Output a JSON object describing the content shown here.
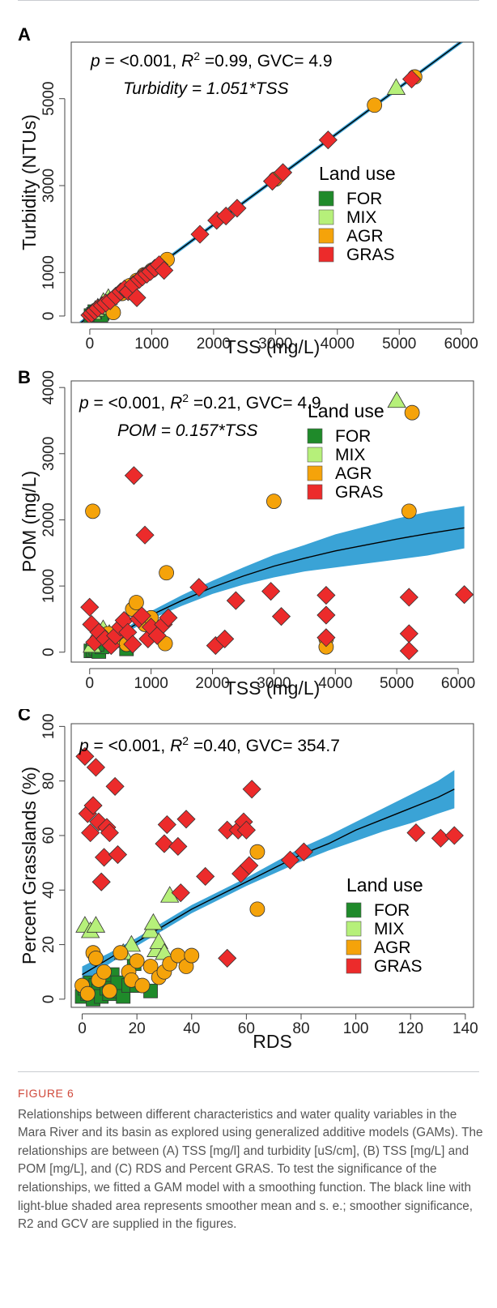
{
  "figure": {
    "caption_title": "FIGURE 6",
    "caption_text": "Relationships between different characteristics and water quality variables in the Mara River and its basin as explored using generalized additive models (GAMs). The relationships are between (A) TSS [mg/l] and turbidity [uS/cm], (B) TSS [mg/L] and POM [mg/L], and (C) RDS and Percent GRAS. To test the significance of the relationships, we fitted a GAM model with a smoothing function. The black line with light-blue shaded area represents smoother mean and s. e.; smoother significance, R2 and GCV are supplied in the figures."
  },
  "colors": {
    "FOR": "#1f8a2a",
    "MIX": "#b6f07a",
    "AGR": "#f5a30a",
    "GRAS": "#ec2b2b",
    "band": "#3aa3d6",
    "smoother": "#000000"
  },
  "legend": {
    "title": "Land use",
    "entries": [
      "FOR",
      "MIX",
      "AGR",
      "GRAS"
    ]
  },
  "chart_data": [
    {
      "id": "A",
      "type": "scatter",
      "panel_letter": "A",
      "stat_p": "p",
      "stat_text": " = <0.001, R",
      "stat_sup": "2",
      "stat_rest": " =0.99, GVC= 4.9",
      "equation": "Turbidity = 1.051*TSS",
      "xlabel": "TSS (mg/L)",
      "ylabel": "Turbidity (NTUs)",
      "xlim": [
        -300,
        6200
      ],
      "ylim": [
        -150,
        6300
      ],
      "xticks": [
        0,
        1000,
        2000,
        3000,
        4000,
        5000,
        6000
      ],
      "yticks": [
        0,
        1000,
        3000,
        5000
      ],
      "fit": {
        "kind": "line",
        "slope": 1.051,
        "x": [
          -150,
          6200
        ]
      },
      "series": [
        {
          "name": "FOR",
          "shape": "square",
          "points": [
            [
              20,
              10
            ],
            [
              60,
              40
            ],
            [
              100,
              60
            ],
            [
              150,
              80
            ],
            [
              200,
              60
            ],
            [
              250,
              120
            ],
            [
              120,
              30
            ],
            [
              180,
              20
            ],
            [
              80,
              100
            ]
          ]
        },
        {
          "name": "MIX",
          "shape": "triangle",
          "points": [
            [
              40,
              80
            ],
            [
              90,
              150
            ],
            [
              130,
              200
            ],
            [
              220,
              330
            ],
            [
              300,
              420
            ],
            [
              4950,
              5250
            ]
          ]
        },
        {
          "name": "AGR",
          "shape": "circle",
          "points": [
            [
              380,
              80
            ],
            [
              520,
              520
            ],
            [
              650,
              700
            ],
            [
              760,
              820
            ],
            [
              880,
              950
            ],
            [
              1000,
              1050
            ],
            [
              1250,
              1300
            ],
            [
              3000,
              3150
            ],
            [
              4600,
              4850
            ],
            [
              5250,
              5500
            ]
          ]
        },
        {
          "name": "GRAS",
          "shape": "diamond",
          "points": [
            [
              0,
              20
            ],
            [
              30,
              60
            ],
            [
              80,
              120
            ],
            [
              130,
              180
            ],
            [
              200,
              240
            ],
            [
              260,
              300
            ],
            [
              330,
              350
            ],
            [
              420,
              460
            ],
            [
              500,
              560
            ],
            [
              560,
              620
            ],
            [
              620,
              560
            ],
            [
              700,
              720
            ],
            [
              760,
              420
            ],
            [
              800,
              840
            ],
            [
              850,
              900
            ],
            [
              920,
              960
            ],
            [
              980,
              1020
            ],
            [
              1050,
              1100
            ],
            [
              1120,
              1180
            ],
            [
              1200,
              1050
            ],
            [
              1780,
              1880
            ],
            [
              2050,
              2200
            ],
            [
              2200,
              2300
            ],
            [
              2380,
              2480
            ],
            [
              2950,
              3100
            ],
            [
              3120,
              3300
            ],
            [
              3850,
              4050
            ],
            [
              5200,
              5450
            ]
          ]
        }
      ]
    },
    {
      "id": "B",
      "type": "scatter",
      "panel_letter": "B",
      "stat_p": "p",
      "stat_text": " = <0.001, R",
      "stat_sup": "2",
      "stat_rest": " =0.21, GVC= 4.9",
      "equation": "POM = 0.157*TSS",
      "xlabel": "TSS (mg/L)",
      "ylabel": "POM (mg/L)",
      "xlim": [
        -300,
        6250
      ],
      "ylim": [
        -150,
        4100
      ],
      "xticks": [
        0,
        1000,
        2000,
        3000,
        4000,
        5000,
        6000
      ],
      "yticks": [
        0,
        1000,
        2000,
        3000,
        4000
      ],
      "fit": {
        "kind": "curve",
        "x": [
          0,
          500,
          1000,
          1500,
          2000,
          2500,
          3000,
          3500,
          4000,
          4500,
          5000,
          5500,
          6100
        ],
        "y": [
          0,
          280,
          560,
          780,
          980,
          1150,
          1300,
          1420,
          1530,
          1620,
          1710,
          1790,
          1880
        ],
        "lo": [
          0,
          250,
          500,
          700,
          880,
          1020,
          1130,
          1220,
          1280,
          1340,
          1400,
          1460,
          1570
        ],
        "hi": [
          0,
          310,
          620,
          860,
          1080,
          1280,
          1470,
          1620,
          1780,
          1900,
          2020,
          2120,
          2210
        ]
      },
      "series": [
        {
          "name": "FOR",
          "shape": "square",
          "points": [
            [
              20,
              20
            ],
            [
              60,
              30
            ],
            [
              100,
              60
            ],
            [
              150,
              10
            ],
            [
              200,
              80
            ],
            [
              600,
              50
            ],
            [
              120,
              120
            ]
          ]
        },
        {
          "name": "MIX",
          "shape": "triangle",
          "points": [
            [
              40,
              100
            ],
            [
              90,
              200
            ],
            [
              140,
              300
            ],
            [
              220,
              350
            ],
            [
              320,
              280
            ],
            [
              5000,
              3800
            ]
          ]
        },
        {
          "name": "AGR",
          "shape": "circle",
          "points": [
            [
              50,
              2130
            ],
            [
              300,
              280
            ],
            [
              450,
              180
            ],
            [
              600,
              120
            ],
            [
              700,
              650
            ],
            [
              760,
              750
            ],
            [
              900,
              420
            ],
            [
              1000,
              520
            ],
            [
              1250,
              1200
            ],
            [
              1230,
              130
            ],
            [
              3000,
              2280
            ],
            [
              3850,
              200
            ],
            [
              3850,
              80
            ],
            [
              5200,
              2130
            ],
            [
              5250,
              3620
            ]
          ]
        },
        {
          "name": "GRAS",
          "shape": "diamond",
          "points": [
            [
              0,
              680
            ],
            [
              30,
              420
            ],
            [
              80,
              150
            ],
            [
              150,
              300
            ],
            [
              250,
              200
            ],
            [
              350,
              100
            ],
            [
              420,
              250
            ],
            [
              500,
              380
            ],
            [
              560,
              480
            ],
            [
              620,
              300
            ],
            [
              700,
              120
            ],
            [
              720,
              2670
            ],
            [
              800,
              500
            ],
            [
              850,
              550
            ],
            [
              900,
              1770
            ],
            [
              950,
              200
            ],
            [
              1000,
              380
            ],
            [
              1100,
              250
            ],
            [
              1200,
              420
            ],
            [
              1280,
              520
            ],
            [
              1780,
              980
            ],
            [
              2050,
              100
            ],
            [
              2200,
              200
            ],
            [
              2380,
              780
            ],
            [
              2950,
              920
            ],
            [
              3120,
              540
            ],
            [
              3850,
              860
            ],
            [
              3850,
              560
            ],
            [
              3850,
              220
            ],
            [
              5200,
              830
            ],
            [
              5200,
              280
            ],
            [
              5200,
              20
            ],
            [
              6100,
              870
            ]
          ]
        }
      ]
    },
    {
      "id": "C",
      "type": "scatter",
      "panel_letter": "C",
      "stat_p": "p",
      "stat_text": " = <0.001, R",
      "stat_sup": "2",
      "stat_rest": " =0.40, GVC= 354.7",
      "equation": "",
      "xlabel": "RDS",
      "ylabel": "Percent Grasslands (%)",
      "xlim": [
        -4,
        143
      ],
      "ylim": [
        -3,
        101
      ],
      "xticks": [
        0,
        20,
        40,
        60,
        80,
        100,
        120,
        140
      ],
      "yticks": [
        0,
        20,
        40,
        60,
        80,
        100
      ],
      "fit": {
        "kind": "curve",
        "x": [
          0,
          10,
          20,
          30,
          40,
          50,
          60,
          70,
          80,
          90,
          100,
          110,
          120,
          130,
          136
        ],
        "y": [
          9,
          15,
          21,
          27,
          33,
          38,
          43,
          48,
          53,
          57,
          62,
          66,
          70,
          74,
          77
        ],
        "lo": [
          6,
          13,
          19.5,
          25.5,
          31.5,
          36.5,
          41.5,
          46,
          50.5,
          54.5,
          58,
          61.5,
          64.5,
          68,
          70
        ],
        "hi": [
          12,
          17,
          22.5,
          28.5,
          34.5,
          39.5,
          44.5,
          50,
          55.5,
          60,
          65,
          70,
          75,
          80,
          84
        ]
      },
      "series": [
        {
          "name": "FOR",
          "shape": "square",
          "points": [
            [
              0,
              1
            ],
            [
              1,
              4
            ],
            [
              2,
              2
            ],
            [
              3,
              6
            ],
            [
              4,
              0
            ],
            [
              5,
              5
            ],
            [
              6,
              3
            ],
            [
              7,
              1
            ],
            [
              8,
              7
            ],
            [
              9,
              4
            ],
            [
              10,
              2
            ],
            [
              11,
              9
            ],
            [
              12,
              3
            ],
            [
              13,
              6
            ],
            [
              15,
              1
            ],
            [
              17,
              5
            ],
            [
              19,
              13
            ],
            [
              20,
              5
            ],
            [
              25,
              3
            ]
          ]
        },
        {
          "name": "MIX",
          "shape": "triangle",
          "points": [
            [
              1,
              27
            ],
            [
              3,
              25
            ],
            [
              5,
              27
            ],
            [
              15,
              17
            ],
            [
              18,
              20
            ],
            [
              25,
              25
            ],
            [
              26,
              28
            ],
            [
              27,
              18
            ],
            [
              28,
              21
            ],
            [
              30,
              17
            ],
            [
              32,
              38
            ]
          ]
        },
        {
          "name": "AGR",
          "shape": "circle",
          "points": [
            [
              0,
              5
            ],
            [
              2,
              2
            ],
            [
              4,
              17
            ],
            [
              5,
              15
            ],
            [
              6,
              7
            ],
            [
              8,
              10
            ],
            [
              10,
              3
            ],
            [
              14,
              17
            ],
            [
              17,
              10
            ],
            [
              18,
              7
            ],
            [
              20,
              14
            ],
            [
              22,
              5
            ],
            [
              25,
              12
            ],
            [
              28,
              8
            ],
            [
              30,
              10
            ],
            [
              32,
              13
            ],
            [
              35,
              16
            ],
            [
              38,
              12
            ],
            [
              40,
              16
            ],
            [
              64,
              33
            ],
            [
              64,
              54
            ]
          ]
        },
        {
          "name": "GRAS",
          "shape": "diamond",
          "points": [
            [
              1,
              89
            ],
            [
              2,
              68
            ],
            [
              3,
              61
            ],
            [
              4,
              71
            ],
            [
              5,
              85
            ],
            [
              6,
              65
            ],
            [
              7,
              43
            ],
            [
              8,
              52
            ],
            [
              9,
              63
            ],
            [
              10,
              61
            ],
            [
              12,
              78
            ],
            [
              13,
              53
            ],
            [
              30,
              57
            ],
            [
              31,
              64
            ],
            [
              35,
              56
            ],
            [
              36,
              39
            ],
            [
              38,
              66
            ],
            [
              45,
              45
            ],
            [
              53,
              62
            ],
            [
              53,
              15
            ],
            [
              57,
              62
            ],
            [
              58,
              46
            ],
            [
              59,
              65
            ],
            [
              60,
              62
            ],
            [
              61,
              49
            ],
            [
              62,
              77
            ],
            [
              76,
              51
            ],
            [
              81,
              54
            ],
            [
              122,
              61
            ],
            [
              131,
              59
            ],
            [
              136,
              60
            ]
          ]
        }
      ]
    }
  ]
}
